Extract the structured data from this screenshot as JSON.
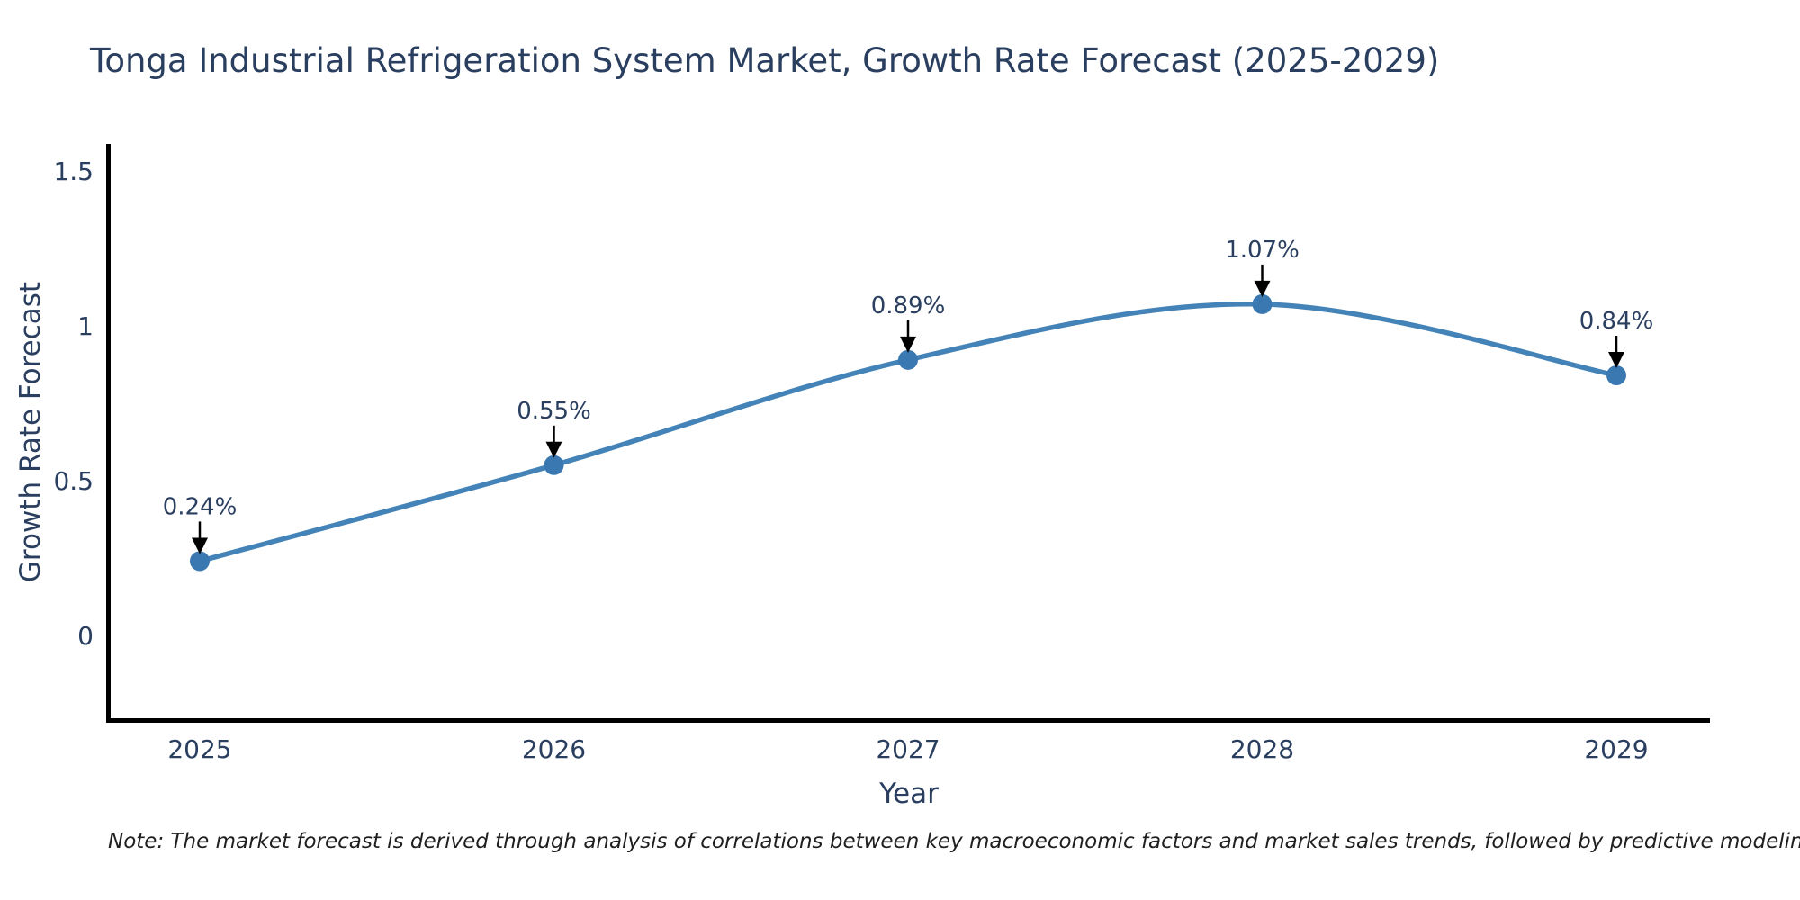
{
  "note": "Note: The market forecast is derived through analysis of correlations between key macroeconomic factors and market sales trends, followed by predictive modeling to project future sales",
  "colors": {
    "line": "#4383b8",
    "marker": "#3a78b2",
    "axis": "#000000",
    "text": "#2a3f5f",
    "arrow": "#000000",
    "background": "#ffffff"
  },
  "chart_data": {
    "type": "line",
    "title": "Tonga Industrial Refrigeration System Market, Growth Rate Forecast (2025-2029)",
    "xlabel": "Year",
    "ylabel": "Growth Rate Forecast",
    "categories": [
      "2025",
      "2026",
      "2027",
      "2028",
      "2029"
    ],
    "values": [
      0.24,
      0.55,
      0.89,
      1.07,
      0.84
    ],
    "point_labels": [
      "0.24%",
      "0.55%",
      "0.89%",
      "1.07%",
      "0.84%"
    ],
    "ytick_values": [
      0,
      0.5,
      1,
      1.5
    ],
    "ytick_labels": [
      "0",
      "0.5",
      "1",
      "1.5"
    ],
    "ylim": [
      -0.27,
      1.59
    ],
    "grid": false,
    "legend_position": "none",
    "line_shape": "spline",
    "marker": "circle"
  }
}
